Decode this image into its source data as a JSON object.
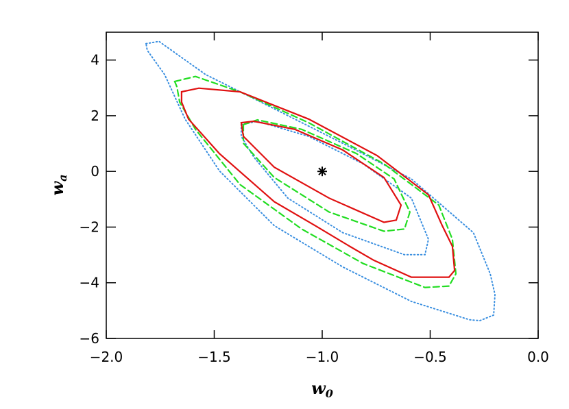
{
  "chart_data": {
    "type": "contour",
    "xlabel": {
      "text": "w",
      "sub": "0"
    },
    "ylabel": {
      "text": "w",
      "sub": "a"
    },
    "xlim": [
      -2.0,
      0.0
    ],
    "ylim": [
      -6,
      5
    ],
    "xticks": [
      {
        "value": -2.0,
        "label": "−2.0"
      },
      {
        "value": -1.5,
        "label": "−1.5"
      },
      {
        "value": -1.0,
        "label": "−1.0"
      },
      {
        "value": -0.5,
        "label": "−0.5"
      },
      {
        "value": 0.0,
        "label": "0.0"
      }
    ],
    "yticks": [
      {
        "value": -6,
        "label": "−6"
      },
      {
        "value": -4,
        "label": "−4"
      },
      {
        "value": -2,
        "label": "−2"
      },
      0,
      2,
      4
    ],
    "series": [
      {
        "color": "#3a8fe0",
        "style": "dotted",
        "x": [
          -1.816,
          -1.756,
          -1.54,
          -1.222,
          -0.905,
          -0.587,
          -0.3,
          -0.222,
          -0.2,
          -0.206,
          -0.27,
          -0.317,
          -0.587,
          -0.905,
          -1.222,
          -1.476,
          -1.635,
          -1.73,
          -1.81
        ],
        "y": [
          4.59,
          4.67,
          3.48,
          2.25,
          1.01,
          -0.27,
          -2.2,
          -3.68,
          -4.42,
          -5.16,
          -5.36,
          -5.33,
          -4.67,
          -3.43,
          -1.95,
          0.02,
          1.88,
          3.48,
          4.35
        ]
      },
      {
        "color": "#3a8fe0",
        "style": "dotted",
        "x": [
          -1.375,
          -1.3,
          -1.063,
          -0.81,
          -0.587,
          -0.508,
          -0.524,
          -0.62,
          -0.905,
          -1.159,
          -1.317,
          -1.375
        ],
        "y": [
          1.68,
          1.8,
          1.26,
          0.27,
          -0.96,
          -2.44,
          -2.99,
          -2.99,
          -2.2,
          -0.96,
          0.52,
          1.26
        ]
      },
      {
        "color": "#22dd22",
        "style": "dashed",
        "x": [
          -1.683,
          -1.587,
          -1.381,
          -1.063,
          -0.714,
          -0.46,
          -0.397,
          -0.381,
          -0.413,
          -0.524,
          -0.81,
          -1.095,
          -1.381,
          -1.587,
          -1.66,
          -1.673
        ],
        "y": [
          3.23,
          3.41,
          2.86,
          1.75,
          0.27,
          -1.21,
          -2.44,
          -3.68,
          -4.12,
          -4.17,
          -3.31,
          -2.07,
          -0.47,
          1.51,
          2.49,
          3.04
        ]
      },
      {
        "color": "#22dd22",
        "style": "dashed",
        "x": [
          -1.365,
          -1.3,
          -1.095,
          -0.841,
          -0.667,
          -0.594,
          -0.619,
          -0.714,
          -0.968,
          -1.222,
          -1.365
        ],
        "y": [
          1.68,
          1.85,
          1.51,
          0.64,
          -0.27,
          -1.46,
          -2.07,
          -2.15,
          -1.46,
          -0.22,
          1.01
        ]
      },
      {
        "color": "#e01010",
        "style": "solid",
        "x": [
          -1.651,
          -1.571,
          -1.381,
          -1.063,
          -0.746,
          -0.508,
          -0.444,
          -0.397,
          -0.387,
          -0.413,
          -0.587,
          -0.762,
          -0.873,
          -1.032,
          -1.222,
          -1.476,
          -1.619,
          -1.651
        ],
        "y": [
          2.86,
          2.99,
          2.86,
          1.88,
          0.57,
          -0.84,
          -1.95,
          -2.69,
          -3.56,
          -3.8,
          -3.8,
          -3.19,
          -2.69,
          -1.95,
          -1.09,
          0.64,
          1.88,
          2.49
        ]
      },
      {
        "color": "#e01010",
        "style": "solid",
        "x": [
          -1.375,
          -1.317,
          -1.127,
          -0.905,
          -0.714,
          -0.635,
          -0.657,
          -0.714,
          -0.968,
          -1.222,
          -1.365
        ],
        "y": [
          1.75,
          1.8,
          1.51,
          0.77,
          -0.22,
          -1.21,
          -1.75,
          -1.83,
          -0.96,
          0.15,
          1.26
        ]
      }
    ],
    "marker": {
      "x": -1.0,
      "y": 0.0,
      "color": "#000000"
    }
  }
}
